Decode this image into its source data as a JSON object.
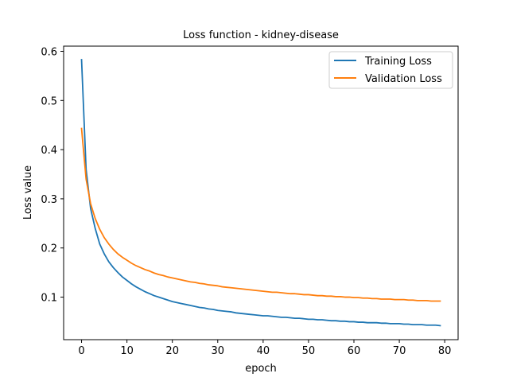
{
  "chart_data": {
    "type": "line",
    "title": "Loss function - kidney-disease",
    "xlabel": "epoch",
    "ylabel": "Loss value",
    "xlim": [
      -3.95,
      82.95
    ],
    "ylim": [
      0.0135,
      0.6105
    ],
    "xticks": [
      0,
      10,
      20,
      30,
      40,
      50,
      60,
      70,
      80
    ],
    "yticks": [
      0.1,
      0.2,
      0.3,
      0.4,
      0.5,
      0.6
    ],
    "ytick_labels": [
      "0.1",
      "0.2",
      "0.3",
      "0.4",
      "0.5",
      "0.6"
    ],
    "grid": false,
    "legend_position": "top-right",
    "series": [
      {
        "name": "Training Loss",
        "color": "#1f77b4",
        "x": [
          0,
          1,
          2,
          3,
          4,
          5,
          6,
          7,
          8,
          9,
          10,
          11,
          12,
          13,
          14,
          15,
          16,
          17,
          18,
          19,
          20,
          21,
          22,
          23,
          24,
          25,
          26,
          27,
          28,
          29,
          30,
          31,
          32,
          33,
          34,
          35,
          36,
          37,
          38,
          39,
          40,
          41,
          42,
          43,
          44,
          45,
          46,
          47,
          48,
          49,
          50,
          51,
          52,
          53,
          54,
          55,
          56,
          57,
          58,
          59,
          60,
          61,
          62,
          63,
          64,
          65,
          66,
          67,
          68,
          69,
          70,
          71,
          72,
          73,
          74,
          75,
          76,
          77,
          78,
          79
        ],
        "values": [
          0.583,
          0.36,
          0.28,
          0.24,
          0.208,
          0.188,
          0.172,
          0.16,
          0.15,
          0.141,
          0.134,
          0.127,
          0.121,
          0.116,
          0.111,
          0.107,
          0.103,
          0.1,
          0.097,
          0.094,
          0.091,
          0.089,
          0.087,
          0.085,
          0.083,
          0.081,
          0.079,
          0.078,
          0.076,
          0.075,
          0.073,
          0.072,
          0.071,
          0.07,
          0.068,
          0.067,
          0.066,
          0.065,
          0.064,
          0.063,
          0.062,
          0.062,
          0.061,
          0.06,
          0.059,
          0.059,
          0.058,
          0.057,
          0.057,
          0.056,
          0.055,
          0.055,
          0.054,
          0.054,
          0.053,
          0.052,
          0.052,
          0.051,
          0.051,
          0.05,
          0.05,
          0.049,
          0.049,
          0.048,
          0.048,
          0.048,
          0.047,
          0.047,
          0.046,
          0.046,
          0.046,
          0.045,
          0.045,
          0.044,
          0.044,
          0.044,
          0.043,
          0.043,
          0.043,
          0.042
        ]
      },
      {
        "name": "Validation Loss",
        "color": "#ff7f0e",
        "x": [
          0,
          1,
          2,
          3,
          4,
          5,
          6,
          7,
          8,
          9,
          10,
          11,
          12,
          13,
          14,
          15,
          16,
          17,
          18,
          19,
          20,
          21,
          22,
          23,
          24,
          25,
          26,
          27,
          28,
          29,
          30,
          31,
          32,
          33,
          34,
          35,
          36,
          37,
          38,
          39,
          40,
          41,
          42,
          43,
          44,
          45,
          46,
          47,
          48,
          49,
          50,
          51,
          52,
          53,
          54,
          55,
          56,
          57,
          58,
          59,
          60,
          61,
          62,
          63,
          64,
          65,
          66,
          67,
          68,
          69,
          70,
          71,
          72,
          73,
          74,
          75,
          76,
          77,
          78,
          79
        ],
        "values": [
          0.443,
          0.34,
          0.29,
          0.26,
          0.238,
          0.221,
          0.208,
          0.197,
          0.188,
          0.181,
          0.175,
          0.169,
          0.164,
          0.16,
          0.156,
          0.153,
          0.149,
          0.146,
          0.144,
          0.141,
          0.139,
          0.137,
          0.135,
          0.133,
          0.131,
          0.13,
          0.128,
          0.127,
          0.125,
          0.124,
          0.123,
          0.121,
          0.12,
          0.119,
          0.118,
          0.117,
          0.116,
          0.115,
          0.114,
          0.113,
          0.112,
          0.111,
          0.11,
          0.11,
          0.109,
          0.108,
          0.107,
          0.107,
          0.106,
          0.105,
          0.105,
          0.104,
          0.103,
          0.103,
          0.102,
          0.102,
          0.101,
          0.101,
          0.1,
          0.1,
          0.099,
          0.099,
          0.098,
          0.098,
          0.097,
          0.097,
          0.096,
          0.096,
          0.096,
          0.095,
          0.095,
          0.095,
          0.094,
          0.094,
          0.093,
          0.093,
          0.093,
          0.092,
          0.092,
          0.092
        ]
      }
    ]
  }
}
